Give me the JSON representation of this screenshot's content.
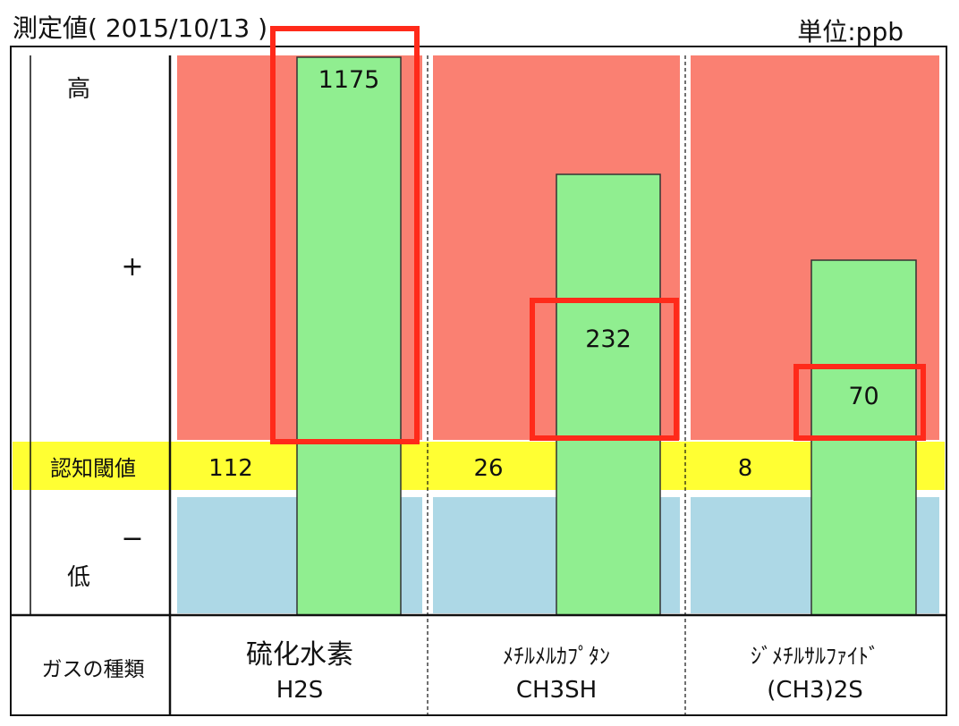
{
  "header": {
    "title": "測定値( 2015/10/13 )",
    "unit": "単位:ppb"
  },
  "chart_data": {
    "type": "bar",
    "title": "測定値( 2015/10/13 )",
    "unit_label": "単位:ppb",
    "y_axis_labels": {
      "high": "高",
      "plus": "+",
      "minus": "−",
      "low": "低"
    },
    "threshold_row_label": "認知閾値",
    "category_row_label": "ガスの種類",
    "categories": [
      {
        "name": "硫化水素",
        "formula": "H2S"
      },
      {
        "name": "ﾒﾁﾙﾒﾙｶﾌﾟﾀﾝ",
        "formula": "CH3SH"
      },
      {
        "name": "ｼﾞﾒﾁﾙｻﾙﾌｧｲﾄﾞ",
        "formula": "(CH3)2S"
      }
    ],
    "series": [
      {
        "name": "測定値",
        "values": [
          1175,
          232,
          70
        ]
      },
      {
        "name": "認知閾値",
        "values": [
          112,
          26,
          8
        ]
      }
    ],
    "bar_labels": [
      "1175",
      "232",
      "70"
    ],
    "threshold_labels": [
      "112",
      "26",
      "8"
    ],
    "highlighted": [
      true,
      true,
      true
    ],
    "colors": {
      "above_zone": "#fa8072",
      "threshold_band": "#ffff33",
      "below_zone": "#add8e6",
      "bar": "#90ee90",
      "highlight": "#ff2a1a"
    }
  }
}
